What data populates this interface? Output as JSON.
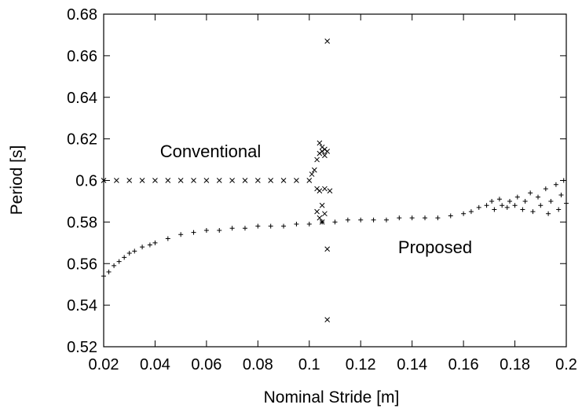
{
  "chart_data": {
    "type": "scatter",
    "xlabel": "Nominal Stride  [m]",
    "ylabel": "Period [s]",
    "xlim": [
      0.02,
      0.2
    ],
    "ylim": [
      0.52,
      0.68
    ],
    "xticks": [
      "0.02",
      "0.04",
      "0.06",
      "0.08",
      "0.1",
      "0.12",
      "0.14",
      "0.16",
      "0.18",
      "0.2"
    ],
    "yticks": [
      "0.52",
      "0.54",
      "0.56",
      "0.58",
      "0.6",
      "0.62",
      "0.64",
      "0.66",
      "0.68"
    ],
    "grid": false,
    "legend": "none",
    "annotations": [
      "Conventional",
      "Proposed"
    ],
    "series": [
      {
        "marker": "x",
        "points": [
          [
            0.02,
            0.6
          ],
          [
            0.025,
            0.6
          ],
          [
            0.03,
            0.6
          ],
          [
            0.035,
            0.6
          ],
          [
            0.04,
            0.6
          ],
          [
            0.045,
            0.6
          ],
          [
            0.05,
            0.6
          ],
          [
            0.055,
            0.6
          ],
          [
            0.06,
            0.6
          ],
          [
            0.065,
            0.6
          ],
          [
            0.07,
            0.6
          ],
          [
            0.075,
            0.6
          ],
          [
            0.08,
            0.6
          ],
          [
            0.085,
            0.6
          ],
          [
            0.09,
            0.6
          ],
          [
            0.095,
            0.6
          ],
          [
            0.1,
            0.6
          ],
          [
            0.101,
            0.603
          ],
          [
            0.102,
            0.605
          ],
          [
            0.103,
            0.61
          ],
          [
            0.103,
            0.596
          ],
          [
            0.103,
            0.585
          ],
          [
            0.104,
            0.618
          ],
          [
            0.104,
            0.613
          ],
          [
            0.104,
            0.595
          ],
          [
            0.104,
            0.582
          ],
          [
            0.105,
            0.616
          ],
          [
            0.105,
            0.614
          ],
          [
            0.105,
            0.588
          ],
          [
            0.105,
            0.58
          ],
          [
            0.106,
            0.615
          ],
          [
            0.106,
            0.612
          ],
          [
            0.106,
            0.596
          ],
          [
            0.106,
            0.584
          ],
          [
            0.107,
            0.614
          ],
          [
            0.107,
            0.567
          ],
          [
            0.107,
            0.533
          ],
          [
            0.107,
            0.667
          ],
          [
            0.108,
            0.595
          ]
        ]
      },
      {
        "marker": "+",
        "points": [
          [
            0.02,
            0.554
          ],
          [
            0.022,
            0.556
          ],
          [
            0.024,
            0.559
          ],
          [
            0.026,
            0.561
          ],
          [
            0.028,
            0.563
          ],
          [
            0.03,
            0.565
          ],
          [
            0.032,
            0.566
          ],
          [
            0.035,
            0.568
          ],
          [
            0.038,
            0.569
          ],
          [
            0.04,
            0.57
          ],
          [
            0.045,
            0.572
          ],
          [
            0.05,
            0.574
          ],
          [
            0.055,
            0.575
          ],
          [
            0.06,
            0.576
          ],
          [
            0.065,
            0.576
          ],
          [
            0.07,
            0.577
          ],
          [
            0.075,
            0.577
          ],
          [
            0.08,
            0.578
          ],
          [
            0.085,
            0.578
          ],
          [
            0.09,
            0.578
          ],
          [
            0.095,
            0.579
          ],
          [
            0.1,
            0.579
          ],
          [
            0.105,
            0.58
          ],
          [
            0.11,
            0.58
          ],
          [
            0.115,
            0.581
          ],
          [
            0.12,
            0.581
          ],
          [
            0.125,
            0.581
          ],
          [
            0.13,
            0.581
          ],
          [
            0.135,
            0.582
          ],
          [
            0.14,
            0.582
          ],
          [
            0.145,
            0.582
          ],
          [
            0.15,
            0.582
          ],
          [
            0.155,
            0.583
          ],
          [
            0.16,
            0.584
          ],
          [
            0.163,
            0.585
          ],
          [
            0.166,
            0.587
          ],
          [
            0.169,
            0.588
          ],
          [
            0.171,
            0.59
          ],
          [
            0.172,
            0.586
          ],
          [
            0.174,
            0.591
          ],
          [
            0.175,
            0.588
          ],
          [
            0.177,
            0.587
          ],
          [
            0.178,
            0.59
          ],
          [
            0.18,
            0.588
          ],
          [
            0.181,
            0.592
          ],
          [
            0.183,
            0.586
          ],
          [
            0.184,
            0.59
          ],
          [
            0.186,
            0.594
          ],
          [
            0.187,
            0.585
          ],
          [
            0.189,
            0.592
          ],
          [
            0.19,
            0.588
          ],
          [
            0.192,
            0.596
          ],
          [
            0.193,
            0.584
          ],
          [
            0.194,
            0.59
          ],
          [
            0.196,
            0.598
          ],
          [
            0.197,
            0.586
          ],
          [
            0.198,
            0.593
          ],
          [
            0.199,
            0.6
          ],
          [
            0.2,
            0.589
          ]
        ]
      }
    ]
  }
}
